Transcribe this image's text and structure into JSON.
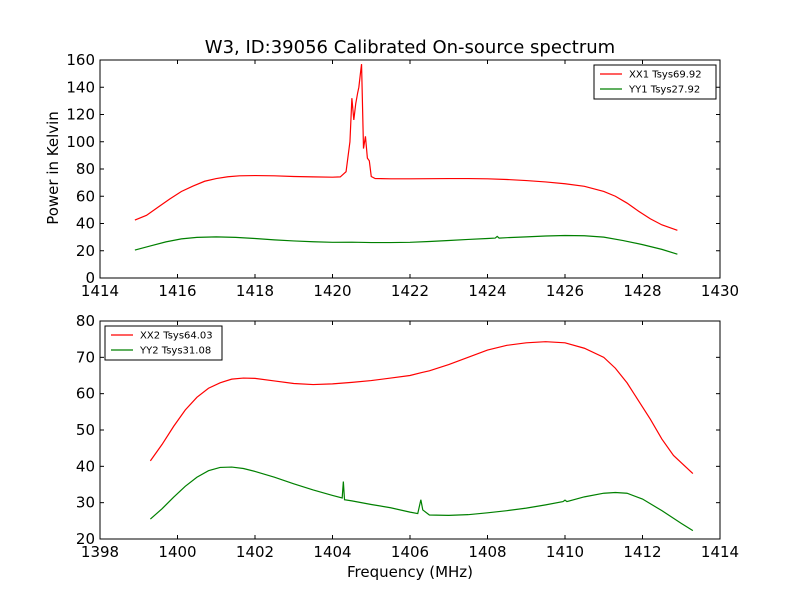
{
  "figure": {
    "title": "W3, ID:39056 Calibrated On-source spectrum",
    "ylabel": "Power in Kelvin",
    "xlabel": "Frequency (MHz)"
  },
  "chart_data": [
    {
      "type": "line",
      "title": "W3, ID:39056 Calibrated On-source spectrum",
      "xlabel": "",
      "ylabel": "Power in Kelvin",
      "xlim": [
        1414,
        1430
      ],
      "ylim": [
        0,
        160
      ],
      "xticks": [
        1414,
        1416,
        1418,
        1420,
        1422,
        1424,
        1426,
        1428,
        1430
      ],
      "yticks": [
        0,
        20,
        40,
        60,
        80,
        100,
        120,
        140,
        160
      ],
      "grid": false,
      "legend_position": "top-right",
      "series": [
        {
          "name": "XX1 Tsys69.92",
          "color": "#ff0000",
          "points": [
            [
              1414.9,
              42.5
            ],
            [
              1415.2,
              46
            ],
            [
              1415.5,
              52
            ],
            [
              1415.8,
              58
            ],
            [
              1416.1,
              63.5
            ],
            [
              1416.4,
              67.5
            ],
            [
              1416.7,
              71
            ],
            [
              1417.0,
              73
            ],
            [
              1417.3,
              74.3
            ],
            [
              1417.6,
              75
            ],
            [
              1418.0,
              75.2
            ],
            [
              1418.5,
              75
            ],
            [
              1419.0,
              74.5
            ],
            [
              1419.5,
              74.2
            ],
            [
              1420.0,
              74
            ],
            [
              1420.2,
              74.2
            ],
            [
              1420.35,
              78
            ],
            [
              1420.45,
              100
            ],
            [
              1420.5,
              132
            ],
            [
              1420.55,
              116
            ],
            [
              1420.6,
              128
            ],
            [
              1420.65,
              136
            ],
            [
              1420.68,
              140
            ],
            [
              1420.72,
              150
            ],
            [
              1420.75,
              157
            ],
            [
              1420.8,
              95
            ],
            [
              1420.85,
              104
            ],
            [
              1420.9,
              88
            ],
            [
              1420.95,
              86
            ],
            [
              1421.0,
              74.5
            ],
            [
              1421.1,
              73
            ],
            [
              1421.5,
              72.8
            ],
            [
              1422.0,
              72.8
            ],
            [
              1422.5,
              72.9
            ],
            [
              1423.0,
              73
            ],
            [
              1423.5,
              73
            ],
            [
              1424.0,
              72.8
            ],
            [
              1424.5,
              72.3
            ],
            [
              1425.0,
              71.5
            ],
            [
              1425.5,
              70.5
            ],
            [
              1426.0,
              69.2
            ],
            [
              1426.5,
              67.3
            ],
            [
              1427.0,
              63.5
            ],
            [
              1427.3,
              60
            ],
            [
              1427.6,
              55
            ],
            [
              1427.9,
              49
            ],
            [
              1428.2,
              43.5
            ],
            [
              1428.5,
              39
            ],
            [
              1428.9,
              35
            ]
          ]
        },
        {
          "name": "YY1 Tsys27.92",
          "color": "#008000",
          "points": [
            [
              1414.9,
              20.5
            ],
            [
              1415.3,
              23.5
            ],
            [
              1415.7,
              26.5
            ],
            [
              1416.1,
              28.7
            ],
            [
              1416.5,
              29.8
            ],
            [
              1417.0,
              30.2
            ],
            [
              1417.5,
              29.8
            ],
            [
              1418.0,
              29
            ],
            [
              1418.5,
              28
            ],
            [
              1419.0,
              27.2
            ],
            [
              1419.5,
              26.6
            ],
            [
              1420.0,
              26.2
            ],
            [
              1420.5,
              26.3
            ],
            [
              1421.0,
              26
            ],
            [
              1421.5,
              26
            ],
            [
              1422.0,
              26.2
            ],
            [
              1422.5,
              26.8
            ],
            [
              1423.0,
              27.5
            ],
            [
              1423.5,
              28.3
            ],
            [
              1424.0,
              29
            ],
            [
              1424.2,
              29.3
            ],
            [
              1424.25,
              30.5
            ],
            [
              1424.3,
              29.3
            ],
            [
              1424.5,
              29.6
            ],
            [
              1425.0,
              30.2
            ],
            [
              1425.5,
              30.8
            ],
            [
              1426.0,
              31.2
            ],
            [
              1426.5,
              31
            ],
            [
              1427.0,
              30
            ],
            [
              1427.5,
              27.5
            ],
            [
              1428.0,
              24.5
            ],
            [
              1428.5,
              21
            ],
            [
              1428.9,
              17.5
            ]
          ]
        }
      ]
    },
    {
      "type": "line",
      "title": "",
      "xlabel": "Frequency (MHz)",
      "ylabel": "",
      "xlim": [
        1398,
        1414
      ],
      "ylim": [
        20,
        80
      ],
      "xticks": [
        1398,
        1400,
        1402,
        1404,
        1406,
        1408,
        1410,
        1412,
        1414
      ],
      "yticks": [
        20,
        30,
        40,
        50,
        60,
        70,
        80
      ],
      "grid": false,
      "legend_position": "top-left",
      "series": [
        {
          "name": "XX2 Tsys64.03",
          "color": "#ff0000",
          "points": [
            [
              1399.3,
              41.5
            ],
            [
              1399.6,
              46
            ],
            [
              1399.9,
              51
            ],
            [
              1400.2,
              55.5
            ],
            [
              1400.5,
              59
            ],
            [
              1400.8,
              61.5
            ],
            [
              1401.1,
              63
            ],
            [
              1401.4,
              64
            ],
            [
              1401.7,
              64.3
            ],
            [
              1402.0,
              64.2
            ],
            [
              1402.5,
              63.5
            ],
            [
              1403.0,
              62.8
            ],
            [
              1403.5,
              62.5
            ],
            [
              1404.0,
              62.7
            ],
            [
              1404.5,
              63.1
            ],
            [
              1405.0,
              63.6
            ],
            [
              1405.5,
              64.3
            ],
            [
              1406.0,
              65
            ],
            [
              1406.3,
              65.8
            ],
            [
              1406.5,
              66.3
            ],
            [
              1407.0,
              68
            ],
            [
              1407.5,
              70
            ],
            [
              1408.0,
              72
            ],
            [
              1408.5,
              73.3
            ],
            [
              1409.0,
              74
            ],
            [
              1409.5,
              74.3
            ],
            [
              1410.0,
              74
            ],
            [
              1410.5,
              72.5
            ],
            [
              1411.0,
              70
            ],
            [
              1411.3,
              67
            ],
            [
              1411.6,
              63
            ],
            [
              1411.9,
              58
            ],
            [
              1412.2,
              53
            ],
            [
              1412.5,
              47.5
            ],
            [
              1412.8,
              43
            ],
            [
              1413.3,
              38
            ]
          ]
        },
        {
          "name": "YY2 Tsys31.08",
          "color": "#008000",
          "points": [
            [
              1399.3,
              25.5
            ],
            [
              1399.6,
              28.3
            ],
            [
              1399.9,
              31.5
            ],
            [
              1400.2,
              34.5
            ],
            [
              1400.5,
              37
            ],
            [
              1400.8,
              38.8
            ],
            [
              1401.1,
              39.7
            ],
            [
              1401.4,
              39.8
            ],
            [
              1401.7,
              39.4
            ],
            [
              1402.0,
              38.6
            ],
            [
              1402.5,
              37
            ],
            [
              1403.0,
              35.2
            ],
            [
              1403.5,
              33.5
            ],
            [
              1404.0,
              32
            ],
            [
              1404.25,
              31.3
            ],
            [
              1404.28,
              35.8
            ],
            [
              1404.31,
              30.8
            ],
            [
              1404.5,
              30.5
            ],
            [
              1405.0,
              29.5
            ],
            [
              1405.5,
              28.6
            ],
            [
              1406.0,
              27.4
            ],
            [
              1406.2,
              27
            ],
            [
              1406.28,
              30.8
            ],
            [
              1406.33,
              28
            ],
            [
              1406.5,
              26.6
            ],
            [
              1407.0,
              26.5
            ],
            [
              1407.5,
              26.7
            ],
            [
              1408.0,
              27.2
            ],
            [
              1408.5,
              27.8
            ],
            [
              1409.0,
              28.5
            ],
            [
              1409.5,
              29.4
            ],
            [
              1409.95,
              30.3
            ],
            [
              1410.0,
              30.7
            ],
            [
              1410.05,
              30.3
            ],
            [
              1410.5,
              31.6
            ],
            [
              1411.0,
              32.6
            ],
            [
              1411.3,
              32.8
            ],
            [
              1411.6,
              32.6
            ],
            [
              1412.0,
              31
            ],
            [
              1412.5,
              27.8
            ],
            [
              1413.0,
              24.3
            ],
            [
              1413.3,
              22.3
            ]
          ]
        }
      ]
    }
  ]
}
